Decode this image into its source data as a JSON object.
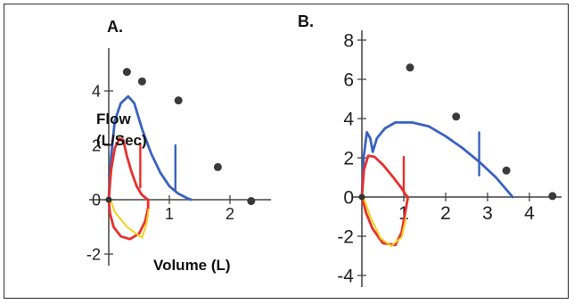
{
  "chart_data": [
    {
      "type": "line",
      "panel_label": "A.",
      "xlabel": "Volume (L)",
      "ylabel": [
        "Flow",
        "(L/Sec)"
      ],
      "xlim": [
        0,
        2.7
      ],
      "ylim": [
        -2.7,
        5.4
      ],
      "x_ticks": [
        1,
        2
      ],
      "y_ticks": [
        -2,
        0,
        2,
        4
      ],
      "grid": false,
      "colors": {
        "blue": "#3a62bf",
        "red": "#e8302c",
        "yellow": "#f2d21c",
        "dot": "#3a3a3a"
      },
      "series": [
        {
          "color": "blue",
          "points": [
            [
              0,
              0
            ],
            [
              0.04,
              1.6
            ],
            [
              0.1,
              2.9
            ],
            [
              0.2,
              3.55
            ],
            [
              0.32,
              3.8
            ],
            [
              0.42,
              3.55
            ],
            [
              0.55,
              2.6
            ],
            [
              0.7,
              1.7
            ],
            [
              0.85,
              1.0
            ],
            [
              1.0,
              0.5
            ],
            [
              1.15,
              0.22
            ],
            [
              1.3,
              0.05
            ],
            [
              1.36,
              0
            ]
          ]
        },
        {
          "color": "red",
          "points": [
            [
              0,
              0
            ],
            [
              0.04,
              1.1
            ],
            [
              0.1,
              1.9
            ],
            [
              0.18,
              2.25
            ],
            [
              0.24,
              2.2
            ],
            [
              0.3,
              1.6
            ],
            [
              0.38,
              1.0
            ],
            [
              0.46,
              0.5
            ],
            [
              0.54,
              0.2
            ],
            [
              0.6,
              0.08
            ],
            [
              0.65,
              0
            ],
            [
              0.65,
              -0.3
            ],
            [
              0.6,
              -0.8
            ],
            [
              0.5,
              -1.25
            ],
            [
              0.35,
              -1.45
            ],
            [
              0.2,
              -1.35
            ],
            [
              0.08,
              -1.0
            ],
            [
              0.02,
              -0.5
            ],
            [
              0,
              0
            ]
          ]
        },
        {
          "color": "yellow",
          "points": [
            [
              0.02,
              0.05
            ],
            [
              0.1,
              -0.45
            ],
            [
              0.3,
              -1.0
            ],
            [
              0.55,
              -1.4
            ],
            [
              0.62,
              -0.9
            ],
            [
              0.66,
              -0.35
            ]
          ]
        },
        {
          "color": "red",
          "points": [
            [
              0.52,
              2.05
            ],
            [
              0.52,
              0.45
            ]
          ]
        },
        {
          "color": "blue",
          "points": [
            [
              1.1,
              2.0
            ],
            [
              1.1,
              0.3
            ]
          ]
        }
      ],
      "dots": [
        [
          0.3,
          4.7
        ],
        [
          0.55,
          4.35
        ],
        [
          1.15,
          3.65
        ],
        [
          1.8,
          1.2
        ],
        [
          2.35,
          -0.05
        ]
      ]
    },
    {
      "type": "line",
      "panel_label": "B.",
      "xlim": [
        0,
        4.7
      ],
      "ylim": [
        -4.6,
        8.6
      ],
      "x_ticks": [
        1,
        2,
        3,
        4
      ],
      "y_ticks": [
        -4,
        -2,
        0,
        2,
        4,
        6,
        8
      ],
      "grid": false,
      "colors": {
        "blue": "#3a62bf",
        "red": "#e8302c",
        "yellow": "#f2d21c",
        "dot": "#3a3a3a"
      },
      "series": [
        {
          "color": "blue",
          "points": [
            [
              0,
              0
            ],
            [
              0.04,
              2.0
            ],
            [
              0.12,
              3.3
            ],
            [
              0.2,
              3.0
            ],
            [
              0.26,
              2.3
            ],
            [
              0.36,
              3.0
            ],
            [
              0.55,
              3.5
            ],
            [
              0.8,
              3.8
            ],
            [
              1.2,
              3.8
            ],
            [
              1.6,
              3.6
            ],
            [
              2.0,
              3.1
            ],
            [
              2.4,
              2.5
            ],
            [
              2.8,
              1.8
            ],
            [
              3.2,
              1.0
            ],
            [
              3.5,
              0.25
            ],
            [
              3.6,
              0
            ]
          ]
        },
        {
          "color": "red",
          "points": [
            [
              0,
              0
            ],
            [
              0.05,
              1.4
            ],
            [
              0.15,
              2.1
            ],
            [
              0.3,
              2.05
            ],
            [
              0.5,
              1.65
            ],
            [
              0.75,
              1.0
            ],
            [
              0.95,
              0.45
            ],
            [
              1.05,
              0.1
            ],
            [
              1.1,
              0
            ],
            [
              1.05,
              -0.6
            ],
            [
              0.95,
              -1.8
            ],
            [
              0.8,
              -2.45
            ],
            [
              0.5,
              -2.35
            ],
            [
              0.25,
              -1.6
            ],
            [
              0.1,
              -0.8
            ],
            [
              0,
              0
            ]
          ]
        },
        {
          "color": "yellow",
          "points": [
            [
              0.02,
              0.1
            ],
            [
              0.2,
              -1.0
            ],
            [
              0.45,
              -2.1
            ],
            [
              0.7,
              -2.5
            ],
            [
              0.95,
              -2.05
            ],
            [
              1.05,
              -1.1
            ]
          ]
        },
        {
          "color": "red",
          "points": [
            [
              1.0,
              2.05
            ],
            [
              1.0,
              0.25
            ]
          ]
        },
        {
          "color": "blue",
          "points": [
            [
              2.8,
              3.3
            ],
            [
              2.8,
              1.1
            ]
          ]
        }
      ],
      "dots": [
        [
          1.15,
          6.6
        ],
        [
          2.25,
          4.1
        ],
        [
          3.45,
          1.35
        ],
        [
          4.55,
          0.05
        ]
      ]
    }
  ]
}
